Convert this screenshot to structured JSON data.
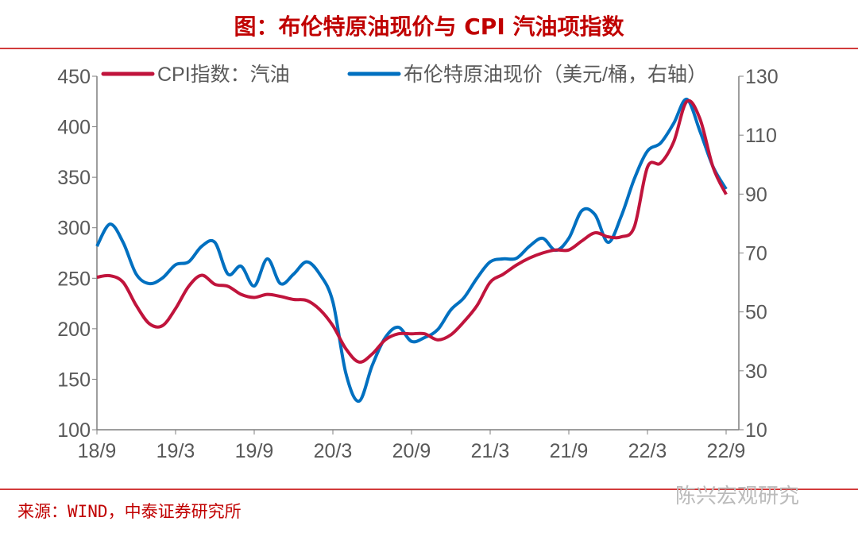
{
  "title": "图：布伦特原油现价与 CPI 汽油项指数",
  "source": "来源：WIND，中泰证券研究所",
  "watermark": "陈兴宏观研究",
  "chart_data": {
    "type": "line",
    "title": "图：布伦特原油现价与 CPI 汽油项指数",
    "x_ticks": [
      "18/9",
      "19/3",
      "19/9",
      "20/3",
      "20/9",
      "21/3",
      "21/9",
      "22/3",
      "22/9"
    ],
    "x_range": [
      "2018-09",
      "2022-09"
    ],
    "left_axis": {
      "ticks": [
        100,
        150,
        200,
        250,
        300,
        350,
        400,
        450
      ],
      "ylim": [
        100,
        450
      ]
    },
    "right_axis": {
      "ticks": [
        10,
        30,
        50,
        70,
        90,
        110,
        130
      ],
      "ylim": [
        10,
        130
      ]
    },
    "legend_placement": "top",
    "grid": false,
    "series": [
      {
        "name": "CPI指数：汽油",
        "axis": "left",
        "color": "#c0143c",
        "values": [
          251,
          252.5,
          246,
          223,
          205,
          203,
          220,
          242,
          253,
          244,
          242,
          234,
          231,
          234,
          232,
          229,
          228,
          219,
          203,
          180,
          167,
          175,
          189,
          195,
          195,
          195,
          189,
          194,
          207,
          223,
          246,
          254,
          263,
          270,
          275,
          278,
          278,
          287,
          295,
          291,
          291,
          301,
          360,
          364,
          385,
          425,
          408,
          360,
          333
        ]
      },
      {
        "name": "布伦特原油现价（美元/桶，右轴）",
        "axis": "right",
        "color": "#0070c0",
        "values": [
          72.3,
          79.8,
          73.6,
          62.8,
          59.6,
          61.5,
          66,
          67,
          72.3,
          73.6,
          62.8,
          65.5,
          58.8,
          68,
          59.6,
          62.8,
          67,
          62.8,
          53.4,
          29,
          19.7,
          31.8,
          41.3,
          44.8,
          40,
          41.3,
          44,
          50.7,
          54.8,
          61.5,
          67,
          68,
          68.2,
          72.3,
          75,
          70.9,
          75,
          84.4,
          83,
          73.6,
          82.5,
          95.2,
          104.6,
          107.3,
          114,
          122.2,
          111.4,
          99.3,
          91.7
        ]
      }
    ]
  }
}
